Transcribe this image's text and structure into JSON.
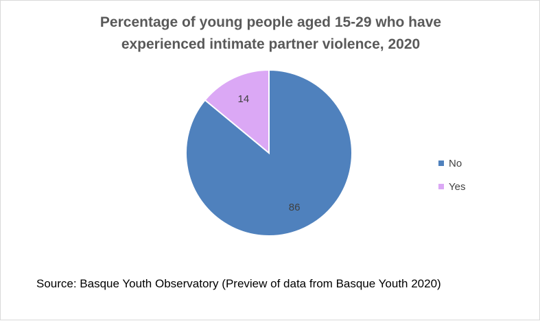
{
  "chart_data": {
    "type": "pie",
    "title_lines": [
      "Percentage of young people aged 15-29 who have",
      "experienced intimate partner violence, 2020"
    ],
    "slices": [
      {
        "label": "No",
        "value": 86,
        "color": "#4f81bd"
      },
      {
        "label": "Yes",
        "value": 14,
        "color": "#dba8f5"
      }
    ],
    "legend_position": "right",
    "source": "Source: Basque Youth Observatory (Preview of data from Basque Youth 2020)"
  }
}
